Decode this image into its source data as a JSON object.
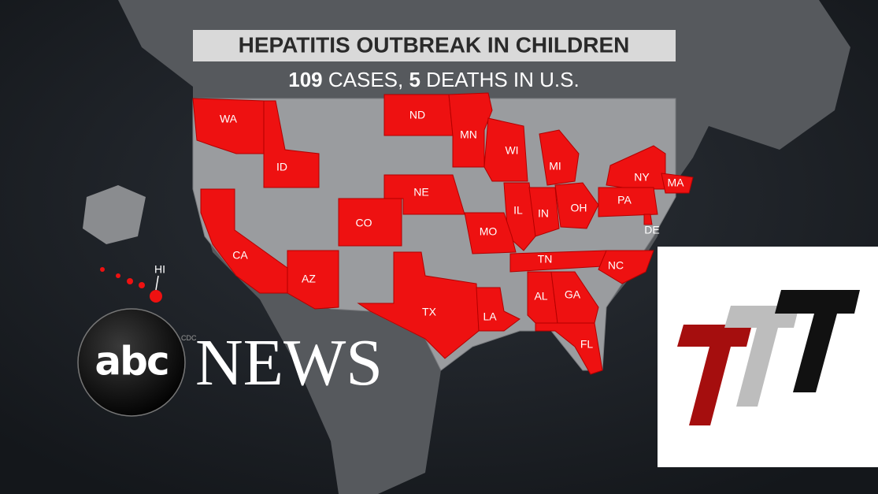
{
  "header": {
    "title": "HEPATITIS OUTBREAK IN CHILDREN",
    "subtitle_parts": [
      {
        "text": "109",
        "bold": true
      },
      {
        "text": " CASES, ",
        "bold": false
      },
      {
        "text": "5",
        "bold": true
      },
      {
        "text": " DEATHS IN U.S.",
        "bold": false
      }
    ]
  },
  "map": {
    "states": [
      {
        "label": "WA"
      },
      {
        "label": "ID"
      },
      {
        "label": "ND"
      },
      {
        "label": "MN"
      },
      {
        "label": "WI"
      },
      {
        "label": "MI"
      },
      {
        "label": "NY"
      },
      {
        "label": "MA"
      },
      {
        "label": "PA"
      },
      {
        "label": "NE"
      },
      {
        "label": "IL"
      },
      {
        "label": "IN"
      },
      {
        "label": "OH"
      },
      {
        "label": "CO"
      },
      {
        "label": "MO"
      },
      {
        "label": "DE"
      },
      {
        "label": "CA"
      },
      {
        "label": "AZ"
      },
      {
        "label": "TN"
      },
      {
        "label": "NC"
      },
      {
        "label": "TX"
      },
      {
        "label": "LA"
      },
      {
        "label": "AL"
      },
      {
        "label": "GA"
      },
      {
        "label": "FL"
      },
      {
        "label": "HI"
      }
    ],
    "source": "CDC"
  },
  "logos": {
    "abc": "abc",
    "news": "NEWS"
  }
}
